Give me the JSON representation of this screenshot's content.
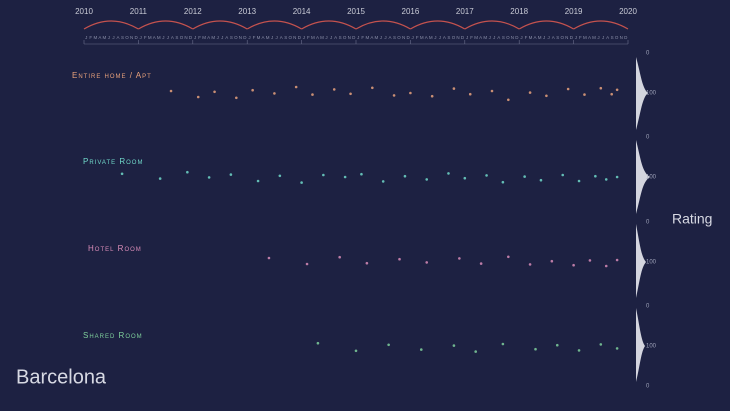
{
  "chart_data": {
    "type": "scatter",
    "title": "Barcelona",
    "y_label": "Rating",
    "months": [
      "J",
      "F",
      "M",
      "A",
      "M",
      "J",
      "J",
      "A",
      "S",
      "O",
      "N",
      "D"
    ],
    "xlim": [
      2010,
      2020
    ],
    "xticks": [
      2010,
      2011,
      2012,
      2013,
      2014,
      2015,
      2016,
      2017,
      2018,
      2019,
      2020
    ],
    "ylim": [
      0,
      100
    ],
    "yticks": [
      0,
      100
    ],
    "series": [
      {
        "name": "Entire home / Apt",
        "color": "#e9a27c",
        "x": [
          2011.6,
          2012.1,
          2012.4,
          2012.8,
          2013.1,
          2013.5,
          2013.9,
          2014.2,
          2014.6,
          2014.9,
          2015.3,
          2015.7,
          2016.0,
          2016.4,
          2016.8,
          2017.1,
          2017.5,
          2017.8,
          2018.2,
          2018.5,
          2018.9,
          2019.2,
          2019.5,
          2019.7,
          2019.8
        ],
        "y": [
          95,
          90,
          97,
          88,
          93,
          99,
          85,
          96,
          91,
          98,
          87,
          94,
          100,
          92,
          89,
          97,
          95,
          83,
          99,
          93,
          90,
          96,
          88,
          97,
          92
        ]
      },
      {
        "name": "Private Room",
        "color": "#70d8c9",
        "x": [
          2010.7,
          2011.4,
          2011.9,
          2012.3,
          2012.7,
          2013.2,
          2013.6,
          2014.0,
          2014.4,
          2014.8,
          2015.1,
          2015.5,
          2015.9,
          2016.3,
          2016.7,
          2017.0,
          2017.4,
          2017.7,
          2018.1,
          2018.4,
          2018.8,
          2019.1,
          2019.4,
          2019.6,
          2019.8
        ],
        "y": [
          92,
          96,
          88,
          99,
          94,
          90,
          97,
          86,
          95,
          100,
          93,
          89,
          98,
          94,
          91,
          97,
          96,
          87,
          99,
          92,
          95,
          90,
          98,
          94,
          100
        ]
      },
      {
        "name": "Hotel Room",
        "color": "#d98cb8",
        "x": [
          2013.4,
          2014.1,
          2014.7,
          2015.2,
          2015.8,
          2016.3,
          2016.9,
          2017.3,
          2017.8,
          2018.2,
          2018.6,
          2019.0,
          2019.3,
          2019.6,
          2019.8
        ],
        "y": [
          90,
          95,
          88,
          97,
          93,
          99,
          91,
          96,
          87,
          94,
          98,
          92,
          96,
          90,
          95
        ]
      },
      {
        "name": "Shared Room",
        "color": "#7fd09c",
        "x": [
          2014.3,
          2015.0,
          2015.6,
          2016.2,
          2016.8,
          2017.2,
          2017.7,
          2018.3,
          2018.7,
          2019.1,
          2019.5,
          2019.8
        ],
        "y": [
          93,
          88,
          97,
          91,
          99,
          86,
          95,
          92,
          98,
          89,
          96,
          94
        ]
      }
    ]
  }
}
